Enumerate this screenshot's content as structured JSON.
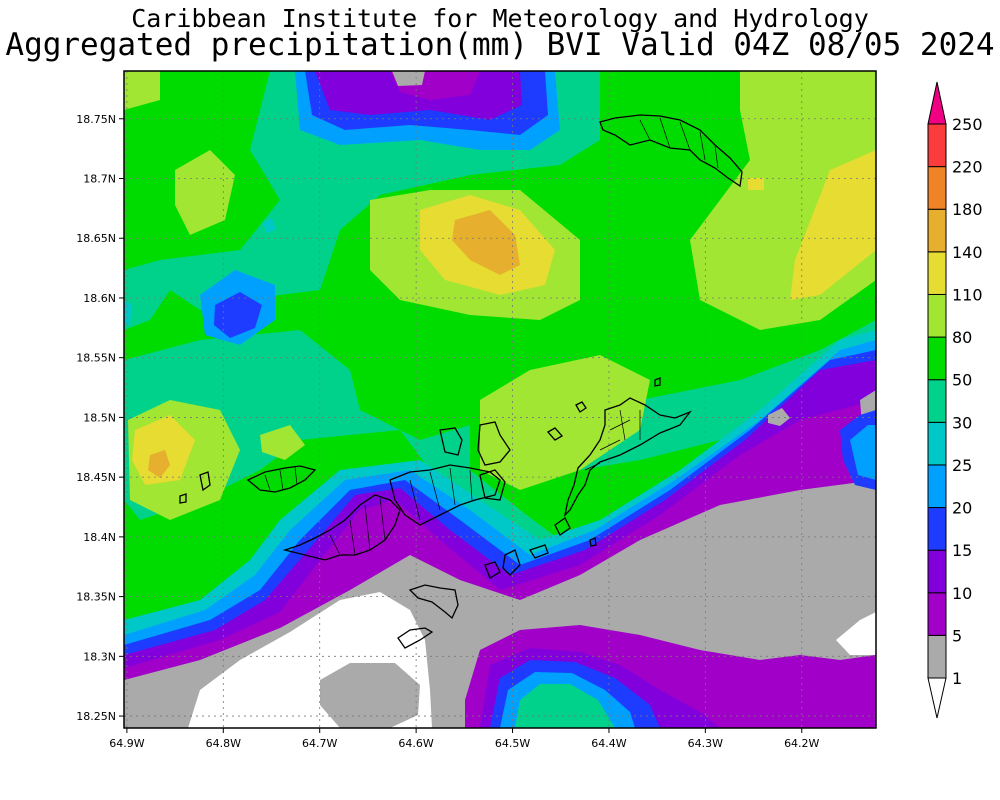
{
  "header": {
    "line1": "Caribbean Institute for Meteorology and Hydrology",
    "line2": "Aggregated precipitation(mm) BVI Valid 04Z 08/05 2024"
  },
  "map": {
    "region": "BVI",
    "lat_labels": [
      "18.75N",
      "18.7N",
      "18.65N",
      "18.6N",
      "18.55N",
      "18.5N",
      "18.45N",
      "18.4N",
      "18.35N",
      "18.3N",
      "18.25N"
    ],
    "lon_labels": [
      "64.9W",
      "64.8W",
      "64.7W",
      "64.6W",
      "64.5W",
      "64.4W",
      "64.3W",
      "64.2W"
    ],
    "lat_range": [
      18.24,
      18.79
    ],
    "lon_range": [
      -64.903,
      -64.123
    ]
  },
  "colorbar": {
    "unit": "mm",
    "levels": [
      {
        "label": "1",
        "color": "#ffffff"
      },
      {
        "label": "5",
        "color": "#aaaaaa"
      },
      {
        "label": "10",
        "color": "#a000c8"
      },
      {
        "label": "15",
        "color": "#8200dc"
      },
      {
        "label": "20",
        "color": "#1e3cff"
      },
      {
        "label": "25",
        "color": "#00a0ff"
      },
      {
        "label": "30",
        "color": "#00c8c8"
      },
      {
        "label": "50",
        "color": "#00d28c"
      },
      {
        "label": "80",
        "color": "#00dc00"
      },
      {
        "label": "110",
        "color": "#a0e632"
      },
      {
        "label": "140",
        "color": "#e6dc32"
      },
      {
        "label": "180",
        "color": "#e6af2d"
      },
      {
        "label": "220",
        "color": "#f08228"
      },
      {
        "label": "250",
        "color": "#fa3c3c"
      }
    ],
    "top_arrow_color": "#f00082"
  }
}
